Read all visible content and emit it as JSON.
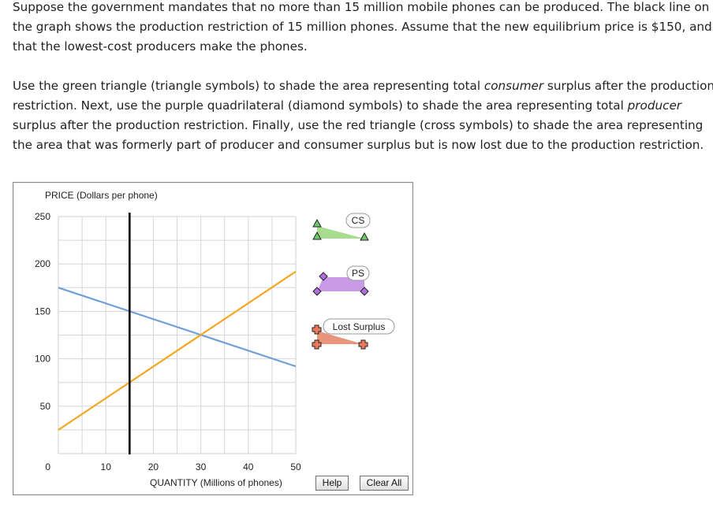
{
  "instructions": {
    "para1": [
      "Suppose the government mandates that no more than 15 million mobile phones can be produced. The black line on",
      "the graph shows the production restriction of 15 million phones. Assume that the new equilibrium price is $150, and",
      "that the lowest-cost producers make the phones."
    ],
    "para2": {
      "l1_pre": "Use the green triangle (triangle symbols) to shade the area representing total ",
      "l1_em": "consumer",
      "l1_post": " surplus after the production",
      "l2_pre": "restriction. Next, use the purple quadrilateral (diamond symbols) to shade the area representing total ",
      "l2_em": "producer",
      "l3": "surplus after the production restriction. Finally, use the red triangle (cross symbols) to shade the area representing",
      "l4": "the area that was formerly part of producer and consumer surplus but is now lost due to the production restriction."
    }
  },
  "chart_data": {
    "type": "line",
    "ylabel": "PRICE (Dollars per phone)",
    "xlabel": "QUANTITY (Millions of phones)",
    "xlim": [
      0,
      50
    ],
    "ylim": [
      0,
      250
    ],
    "x_ticks": [
      "10",
      "20",
      "30",
      "40",
      "50"
    ],
    "y_ticks": [
      "0",
      "50",
      "100",
      "150",
      "200",
      "250"
    ],
    "grid": true,
    "series": [
      {
        "color": "#6f9fd4",
        "points": [
          [
            0,
            175
          ],
          [
            50,
            92
          ]
        ]
      },
      {
        "color": "#f5a623",
        "points": [
          [
            0,
            25
          ],
          [
            50,
            192
          ]
        ]
      }
    ],
    "restriction_line": {
      "x": 15,
      "color": "#000000"
    }
  },
  "palette": {
    "cs_label": "CS",
    "ps_label": "PS",
    "lost_label": "Lost Surplus",
    "cs_color": "#a8dc8f",
    "ps_color": "#c99ae6",
    "lost_color": "#e8957c"
  },
  "buttons": {
    "help": "Help",
    "clear_all": "Clear All"
  }
}
